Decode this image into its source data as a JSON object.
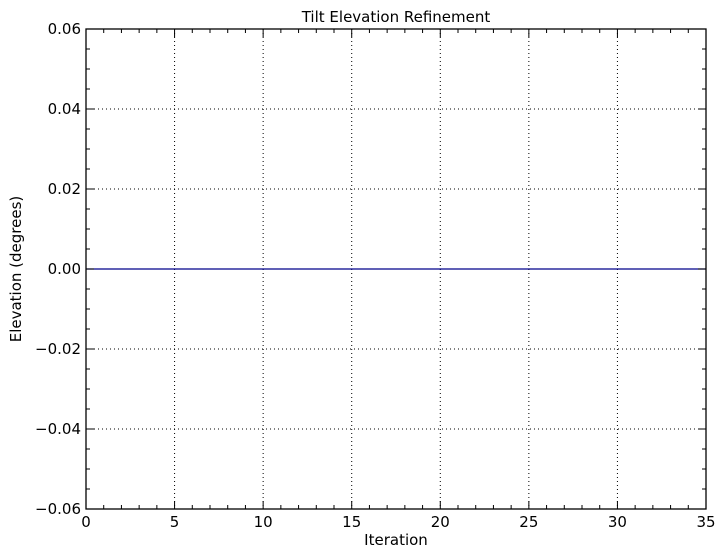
{
  "chart_data": {
    "type": "line",
    "title": "Tilt Elevation Refinement",
    "xlabel": "Iteration",
    "ylabel": "Elevation (degrees)",
    "xlim": [
      0,
      35
    ],
    "ylim": [
      -0.06,
      0.06
    ],
    "xticks": [
      0,
      5,
      10,
      15,
      20,
      25,
      30,
      35
    ],
    "yticks": [
      -0.06,
      -0.04,
      -0.02,
      0.0,
      0.02,
      0.04,
      0.06
    ],
    "xtick_labels": [
      "0",
      "5",
      "10",
      "15",
      "20",
      "25",
      "30",
      "35"
    ],
    "ytick_labels": [
      "−0.06",
      "−0.04",
      "−0.02",
      "0.00",
      "0.02",
      "0.04",
      "0.06"
    ],
    "grid": true,
    "series": [
      {
        "color": "#00008b",
        "x": [
          0,
          1,
          2,
          3,
          4,
          5,
          6,
          7,
          8,
          9,
          10,
          11,
          12,
          13,
          14,
          15,
          16,
          17,
          18,
          19,
          20,
          21,
          22,
          23,
          24,
          25,
          26,
          27,
          28,
          29,
          30,
          31,
          32,
          33,
          34,
          35
        ],
        "y": [
          0,
          0,
          0,
          0,
          0,
          0,
          0,
          0,
          0,
          0,
          0,
          0,
          0,
          0,
          0,
          0,
          0,
          0,
          0,
          0,
          0,
          0,
          0,
          0,
          0,
          0,
          0,
          0,
          0,
          0,
          0,
          0,
          0,
          0,
          0,
          0
        ]
      }
    ]
  }
}
